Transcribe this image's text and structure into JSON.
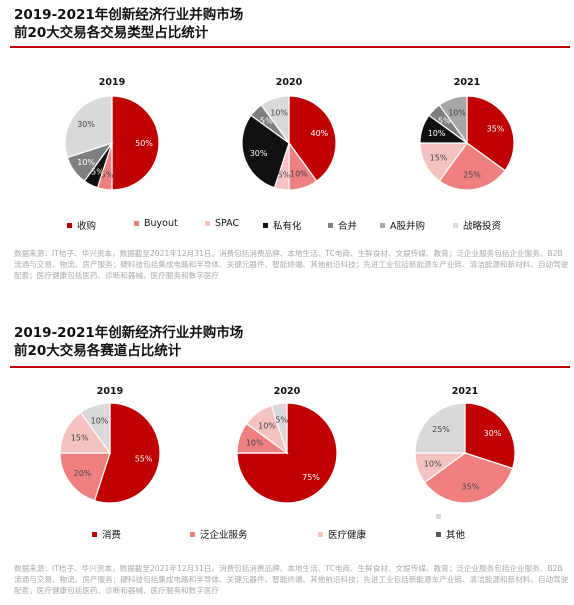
{
  "sections": [
    {
      "title_line1": "2019-2021年创新经济行业并购市场",
      "title_line2": "前20大交易各交易类型占比统计",
      "legend": [
        {
          "label": "收购",
          "color": "#c00000"
        },
        {
          "label": "Buyout",
          "color": "#f08080"
        },
        {
          "label": "SPAC",
          "color": "#f5c2c2"
        },
        {
          "label": "私有化",
          "color": "#111111"
        },
        {
          "label": "合并",
          "color": "#7f7f7f"
        },
        {
          "label": "A股并购",
          "color": "#a6a6a6"
        },
        {
          "label": "战略投资",
          "color": "#d9d9d9"
        }
      ],
      "source": "数据来源：IT桔子、华兴资本，数据截至2021年12月31日。消费包括消费品牌、本地生活、TC电商、生鲜食材、文娱传媒、教育；泛企业服务包括企业服务、B2B流通与交易、物流、房产服务；硬科技包括集成电路和半导体、关键元器件、智能终端、其他前沿科技；先进工业包括新能源车产业链、清洁能源和新材料、自动驾驶配套；医疗健康包括医药、诊断和器械、医疗服务和数字医疗"
    },
    {
      "title_line1": "2019-2021年创新经济行业并购市场",
      "title_line2": "前20大交易各赛道占比统计",
      "legend": [
        {
          "label": "消费",
          "color": "#c00000"
        },
        {
          "label": "泛企业服务",
          "color": "#f08080"
        },
        {
          "label": "医疗健康",
          "color": "#f5c2c2"
        },
        {
          "label": "",
          "color": "#d9d9d9"
        },
        {
          "label": "其他",
          "color": "#595959"
        }
      ],
      "source": "数据来源：IT桔子、华兴资本，数据截至2021年12月31日。消费包括消费品牌、本地生活、TC电商、生鲜食材、文娱传媒、教育；泛企业服务包括企业服务、B2B流通与交易、物流、房产服务；硬科技包括集成电路和半导体、关键元器件、智能终端、其他前沿科技；先进工业包括新能源车产业链、清洁能源和新材料、自动驾驶配套；医疗健康包括医药、诊断和器械、医疗服务和数字医疗"
    }
  ],
  "chart_data": [
    {
      "type": "pie",
      "title": "2019",
      "section": 0,
      "slices": [
        {
          "label": "收购",
          "value": 50,
          "text": "50%",
          "color": "#c00000"
        },
        {
          "label": "Buyout",
          "value": 5,
          "text": "5%",
          "color": "#f08080"
        },
        {
          "label": "私有化",
          "value": 5,
          "text": "5%",
          "color": "#111111"
        },
        {
          "label": "合并",
          "value": 10,
          "text": "10%",
          "color": "#7f7f7f"
        },
        {
          "label": "战略投资",
          "value": 30,
          "text": "30%",
          "color": "#d9d9d9"
        }
      ]
    },
    {
      "type": "pie",
      "title": "2020",
      "section": 0,
      "slices": [
        {
          "label": "收购",
          "value": 40,
          "text": "40%",
          "color": "#c00000"
        },
        {
          "label": "Buyout",
          "value": 10,
          "text": "10%",
          "color": "#f08080"
        },
        {
          "label": "SPAC",
          "value": 5,
          "text": "5%",
          "color": "#f5c2c2"
        },
        {
          "label": "私有化",
          "value": 30,
          "text": "30%",
          "color": "#111111"
        },
        {
          "label": "合并",
          "value": 5,
          "text": "5%",
          "color": "#7f7f7f"
        },
        {
          "label": "战略投资",
          "value": 10,
          "text": "10%",
          "color": "#d9d9d9"
        }
      ]
    },
    {
      "type": "pie",
      "title": "2021",
      "section": 0,
      "slices": [
        {
          "label": "收购",
          "value": 35,
          "text": "35%",
          "color": "#c00000"
        },
        {
          "label": "Buyout",
          "value": 25,
          "text": "25%",
          "color": "#f08080"
        },
        {
          "label": "SPAC",
          "value": 15,
          "text": "15%",
          "color": "#f5c2c2"
        },
        {
          "label": "私有化",
          "value": 10,
          "text": "10%",
          "color": "#111111"
        },
        {
          "label": "合并",
          "value": 5,
          "text": "5%",
          "color": "#7f7f7f"
        },
        {
          "label": "A股并购",
          "value": 10,
          "text": "10%",
          "color": "#a6a6a6"
        }
      ]
    },
    {
      "type": "pie",
      "title": "2019",
      "section": 1,
      "slices": [
        {
          "label": "消费",
          "value": 55,
          "text": "55%",
          "color": "#c00000"
        },
        {
          "label": "泛企业服务",
          "value": 20,
          "text": "20%",
          "color": "#f08080"
        },
        {
          "label": "医疗健康",
          "value": 15,
          "text": "15%",
          "color": "#f5c2c2"
        },
        {
          "label": "",
          "value": 10,
          "text": "10%",
          "color": "#d9d9d9"
        }
      ]
    },
    {
      "type": "pie",
      "title": "2020",
      "section": 1,
      "slices": [
        {
          "label": "消费",
          "value": 75,
          "text": "75%",
          "color": "#c00000"
        },
        {
          "label": "泛企业服务",
          "value": 10,
          "text": "10%",
          "color": "#f08080"
        },
        {
          "label": "医疗健康",
          "value": 10,
          "text": "10%",
          "color": "#f5c2c2"
        },
        {
          "label": "",
          "value": 5,
          "text": "5%",
          "color": "#d9d9d9"
        }
      ]
    },
    {
      "type": "pie",
      "title": "2021",
      "section": 1,
      "slices": [
        {
          "label": "消费",
          "value": 30,
          "text": "30%",
          "color": "#c00000"
        },
        {
          "label": "泛企业服务",
          "value": 35,
          "text": "35%",
          "color": "#f08080"
        },
        {
          "label": "医疗健康",
          "value": 10,
          "text": "10%",
          "color": "#f5c2c2"
        },
        {
          "label": "",
          "value": 25,
          "text": "25%",
          "color": "#d9d9d9"
        }
      ]
    }
  ]
}
